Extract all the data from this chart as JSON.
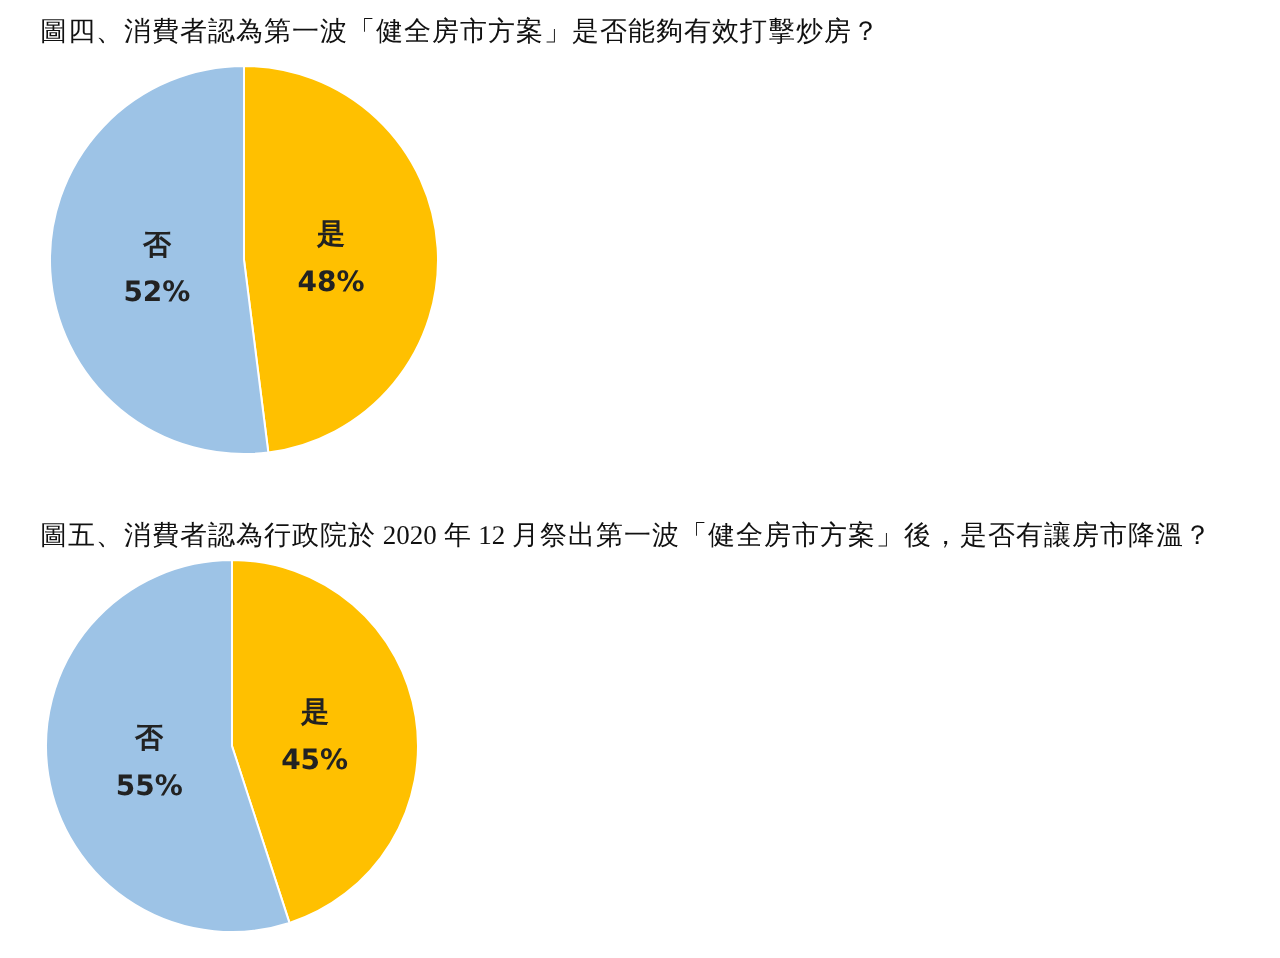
{
  "chart_data": [
    {
      "type": "pie",
      "title": "圖四、消費者認為第一波「健全房市方案」是否能夠有效打擊炒房？",
      "categories": [
        "是",
        "否"
      ],
      "values": [
        48,
        52
      ],
      "colors": [
        "#ffc000",
        "#9dc3e6"
      ],
      "value_labels": [
        "48%",
        "52%"
      ],
      "legend": false
    },
    {
      "type": "pie",
      "title": "圖五、消費者認為行政院於 2020 年 12 月祭出第一波「健全房市方案」後，是否有讓房市降溫？",
      "categories": [
        "是",
        "否"
      ],
      "values": [
        45,
        55
      ],
      "colors": [
        "#ffc000",
        "#9dc3e6"
      ],
      "value_labels": [
        "45%",
        "55%"
      ],
      "legend": false
    }
  ]
}
